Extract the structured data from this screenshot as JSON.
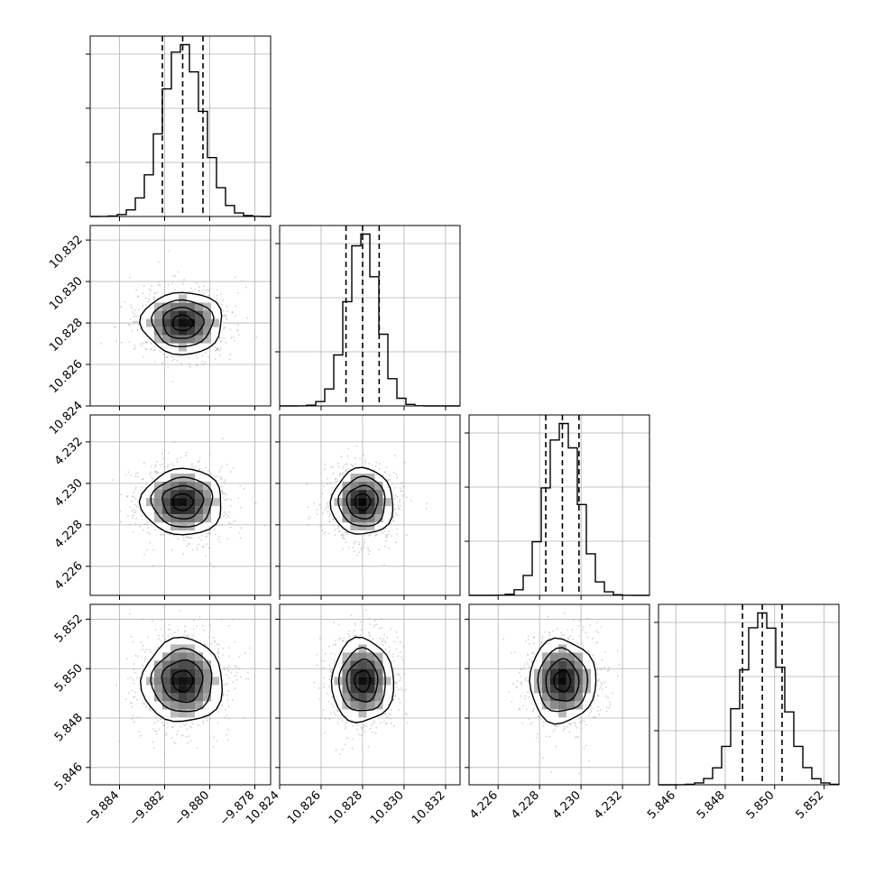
{
  "chart_data": {
    "type": "corner",
    "title": "",
    "params": [
      {
        "xlabel": "",
        "ylabel": "",
        "mean": -9.8812,
        "std": 0.0009,
        "range": [
          -9.8853,
          -9.8773
        ],
        "xticks": [
          -9.884,
          -9.882,
          -9.88,
          -9.878
        ],
        "tick_labels": [
          "−9.884",
          "−9.882",
          "−9.880",
          "−9.878"
        ],
        "quantiles": [
          -9.8821,
          -9.8812,
          -9.8803
        ]
      },
      {
        "xlabel": "",
        "ylabel": "",
        "mean": 10.828,
        "std": 0.00075,
        "range": [
          10.824,
          10.8327
        ],
        "xticks": [
          10.824,
          10.826,
          10.828,
          10.83,
          10.832
        ],
        "tick_labels": [
          "10.824",
          "10.826",
          "10.828",
          "10.830",
          "10.832"
        ],
        "quantiles": [
          10.8272,
          10.828,
          10.8288
        ]
      },
      {
        "xlabel": "",
        "ylabel": "",
        "mean": 4.2291,
        "std": 0.0008,
        "range": [
          4.2246,
          4.2333
        ],
        "xticks": [
          4.226,
          4.228,
          4.23,
          4.232
        ],
        "tick_labels": [
          "4.226",
          "4.228",
          "4.230",
          "4.232"
        ],
        "quantiles": [
          4.2283,
          4.2291,
          4.2299
        ]
      },
      {
        "xlabel": "",
        "ylabel": "",
        "mean": 5.8495,
        "std": 0.00085,
        "range": [
          5.8453,
          5.8526
        ],
        "xticks": [
          5.846,
          5.848,
          5.85,
          5.852
        ],
        "tick_labels": [
          "5.846",
          "5.848",
          "5.850",
          "5.852"
        ],
        "quantiles": [
          5.8487,
          5.8495,
          5.8503
        ]
      }
    ],
    "histogram_bins": 20,
    "contour_levels_sigma": [
      0.5,
      1.0,
      1.5,
      2.0
    ],
    "grid": true,
    "colors": {
      "points": "#999999",
      "density": "#000000",
      "lines": "#000000"
    }
  }
}
